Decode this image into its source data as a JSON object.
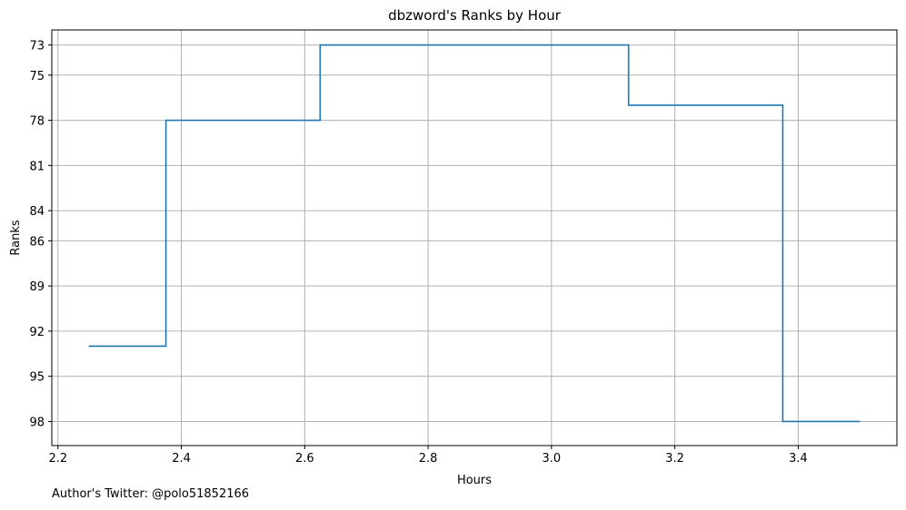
{
  "chart_data": {
    "type": "line",
    "step": "post",
    "title": "dbzword's Ranks by Hour",
    "xlabel": "Hours",
    "ylabel": "Ranks",
    "xlim": [
      2.19,
      3.56
    ],
    "ylim": [
      99.6,
      72.0
    ],
    "y_inverted": true,
    "grid": true,
    "x_ticks": [
      2.2,
      2.4,
      2.6,
      2.8,
      3.0,
      3.2,
      3.4
    ],
    "x_tick_labels": [
      "2.2",
      "2.4",
      "2.6",
      "2.8",
      "3.0",
      "3.2",
      "3.4"
    ],
    "y_ticks": [
      73,
      75,
      78,
      81,
      84,
      86,
      89,
      92,
      95,
      98
    ],
    "y_tick_labels": [
      "73",
      "75",
      "78",
      "81",
      "84",
      "86",
      "89",
      "92",
      "95",
      "98"
    ],
    "series": [
      {
        "color": "#1f77b4",
        "x": [
          2.25,
          2.375,
          2.625,
          3.125,
          3.375,
          3.5
        ],
        "y": [
          93,
          78,
          73,
          77,
          98,
          98
        ]
      }
    ]
  },
  "footer": "Author's Twitter: @polo51852166"
}
